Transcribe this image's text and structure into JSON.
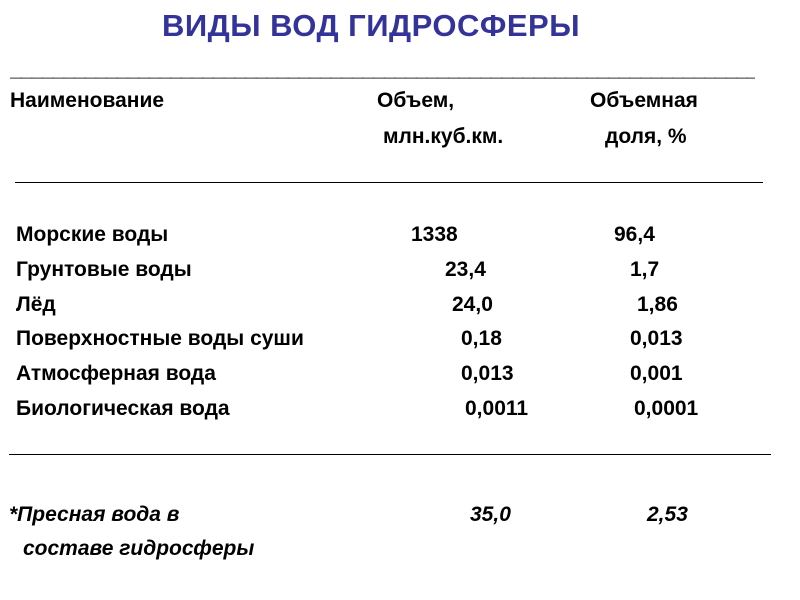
{
  "title": "ВИДЫ ВОД ГИДРОСФЕРЫ",
  "top_rule": "_______________________________________________________________________________________",
  "header": {
    "name": "Наименование",
    "volume_line1": "Объем,",
    "volume_line2": "млн.куб.км.",
    "share_line1": "Объемная",
    "share_line2": "доля, %"
  },
  "rows": [
    {
      "name": "Морские воды",
      "volume": "1338",
      "share": "96,4"
    },
    {
      "name": "Грунтовые воды",
      "volume": "23,4",
      "share": "1,7"
    },
    {
      "name": "Лёд",
      "volume": "24,0",
      "share": "1,86"
    },
    {
      "name": "Поверхностные воды суши",
      "volume": "0,18",
      "share": "0,013"
    },
    {
      "name": "Атмосферная вода",
      "volume": "0,013",
      "share": "0,001"
    },
    {
      "name": "Биологическая вода",
      "volume": "0,0011",
      "share": "0,0001"
    }
  ],
  "footnote": {
    "line1": "*Пресная вода в",
    "line2": "составе гидросферы",
    "volume": "35,0",
    "share": "2,53"
  },
  "colors": {
    "title": "#333399",
    "text": "#000000",
    "background": "#ffffff"
  }
}
